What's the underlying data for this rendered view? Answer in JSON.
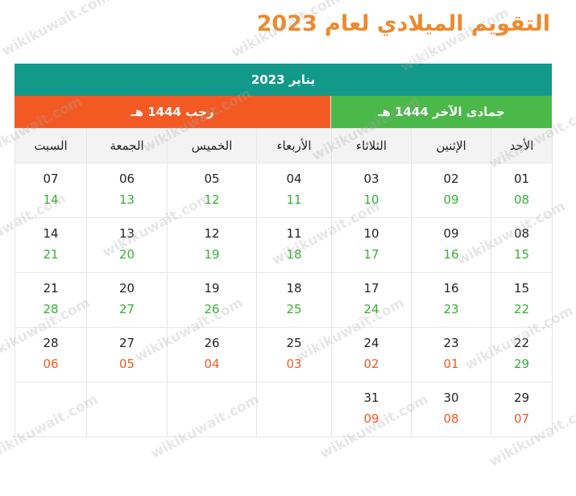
{
  "title": "التقويم الميلادي لعام 2023",
  "month": "يناير 2023",
  "hijri_left": "رجب 1444 هـ",
  "hijri_right": "جمادى الآخر 1444 هـ",
  "weekdays_ltr": [
    "السبت",
    "الجمعة",
    "الخميس",
    "الأربعاء",
    "الثلاثاء",
    "الإثنين",
    "الأحد"
  ],
  "weeks_ltr": [
    [
      {
        "g": "07",
        "h": "14",
        "c": "green"
      },
      {
        "g": "06",
        "h": "13",
        "c": "green"
      },
      {
        "g": "05",
        "h": "12",
        "c": "green"
      },
      {
        "g": "04",
        "h": "11",
        "c": "green"
      },
      {
        "g": "03",
        "h": "10",
        "c": "green"
      },
      {
        "g": "02",
        "h": "09",
        "c": "green"
      },
      {
        "g": "01",
        "h": "08",
        "c": "green"
      }
    ],
    [
      {
        "g": "14",
        "h": "21",
        "c": "green"
      },
      {
        "g": "13",
        "h": "20",
        "c": "green"
      },
      {
        "g": "12",
        "h": "19",
        "c": "green"
      },
      {
        "g": "11",
        "h": "18",
        "c": "green"
      },
      {
        "g": "10",
        "h": "17",
        "c": "green"
      },
      {
        "g": "09",
        "h": "16",
        "c": "green"
      },
      {
        "g": "08",
        "h": "15",
        "c": "green"
      }
    ],
    [
      {
        "g": "21",
        "h": "28",
        "c": "green"
      },
      {
        "g": "20",
        "h": "27",
        "c": "green"
      },
      {
        "g": "19",
        "h": "26",
        "c": "green"
      },
      {
        "g": "18",
        "h": "25",
        "c": "green"
      },
      {
        "g": "17",
        "h": "24",
        "c": "green"
      },
      {
        "g": "16",
        "h": "23",
        "c": "green"
      },
      {
        "g": "15",
        "h": "22",
        "c": "green"
      }
    ],
    [
      {
        "g": "28",
        "h": "06",
        "c": "orange"
      },
      {
        "g": "27",
        "h": "05",
        "c": "orange"
      },
      {
        "g": "26",
        "h": "04",
        "c": "orange"
      },
      {
        "g": "25",
        "h": "03",
        "c": "orange"
      },
      {
        "g": "24",
        "h": "02",
        "c": "orange"
      },
      {
        "g": "23",
        "h": "01",
        "c": "orange"
      },
      {
        "g": "22",
        "h": "29",
        "c": "green"
      }
    ],
    [
      {
        "g": "",
        "h": "",
        "c": ""
      },
      {
        "g": "",
        "h": "",
        "c": ""
      },
      {
        "g": "",
        "h": "",
        "c": ""
      },
      {
        "g": "",
        "h": "",
        "c": ""
      },
      {
        "g": "31",
        "h": "09",
        "c": "orange"
      },
      {
        "g": "30",
        "h": "08",
        "c": "orange"
      },
      {
        "g": "29",
        "h": "07",
        "c": "orange"
      }
    ]
  ],
  "watermark": "wikikuwait.com",
  "colors": {
    "title": "#ec8a2e",
    "month_bar": "#13998a",
    "hijri_left": "#f35a23",
    "hijri_right": "#4bb84a",
    "hijri_green": "#35b033",
    "hijri_orange": "#f05a24"
  }
}
